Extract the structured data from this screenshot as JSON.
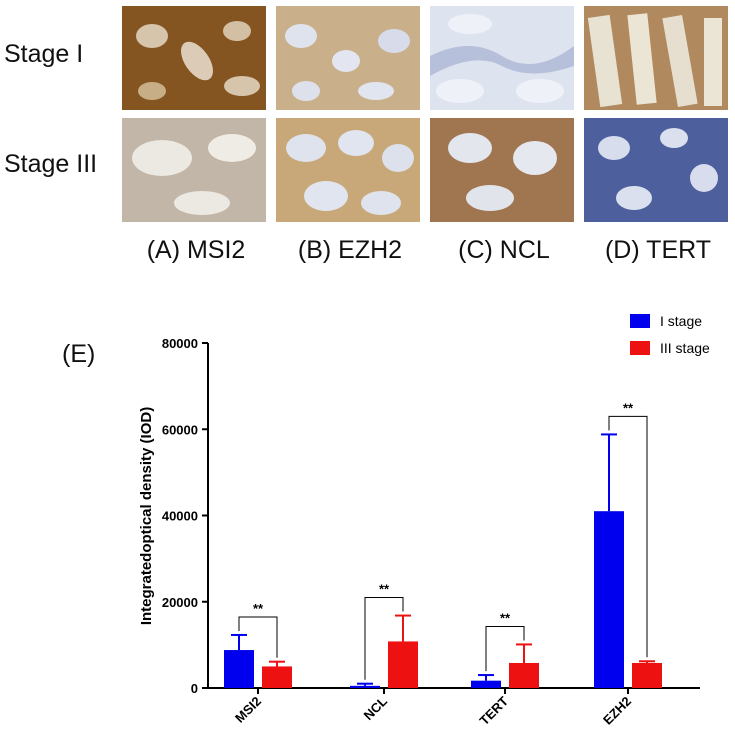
{
  "micrographs": {
    "row_labels": [
      "Stage I",
      "Stage III"
    ],
    "column_labels": [
      "(A) MSI2",
      "(B) EZH2",
      "(C) NCL",
      "(D) TERT"
    ]
  },
  "panel_e_label": "(E)",
  "chart_data": {
    "type": "bar",
    "categories": [
      "MSI2",
      "NCL",
      "TERT",
      "EZH2"
    ],
    "series": [
      {
        "name": "I stage",
        "color": "#0000ee",
        "values": [
          8800,
          500,
          1700,
          41000
        ],
        "errors": [
          3500,
          500,
          1300,
          17800
        ]
      },
      {
        "name": "III stage",
        "color": "#ee1111",
        "values": [
          5000,
          10800,
          5800,
          5800
        ],
        "errors": [
          1100,
          6000,
          4300,
          400
        ]
      }
    ],
    "significance": [
      "**",
      "**",
      "**",
      "**"
    ],
    "ylabel": "Integratedoptical density (IOD)",
    "xlabel": "",
    "ylim": [
      0,
      80000
    ],
    "yticks": [
      0,
      20000,
      40000,
      60000,
      80000
    ],
    "legend_position": "top-right",
    "grid": false
  }
}
